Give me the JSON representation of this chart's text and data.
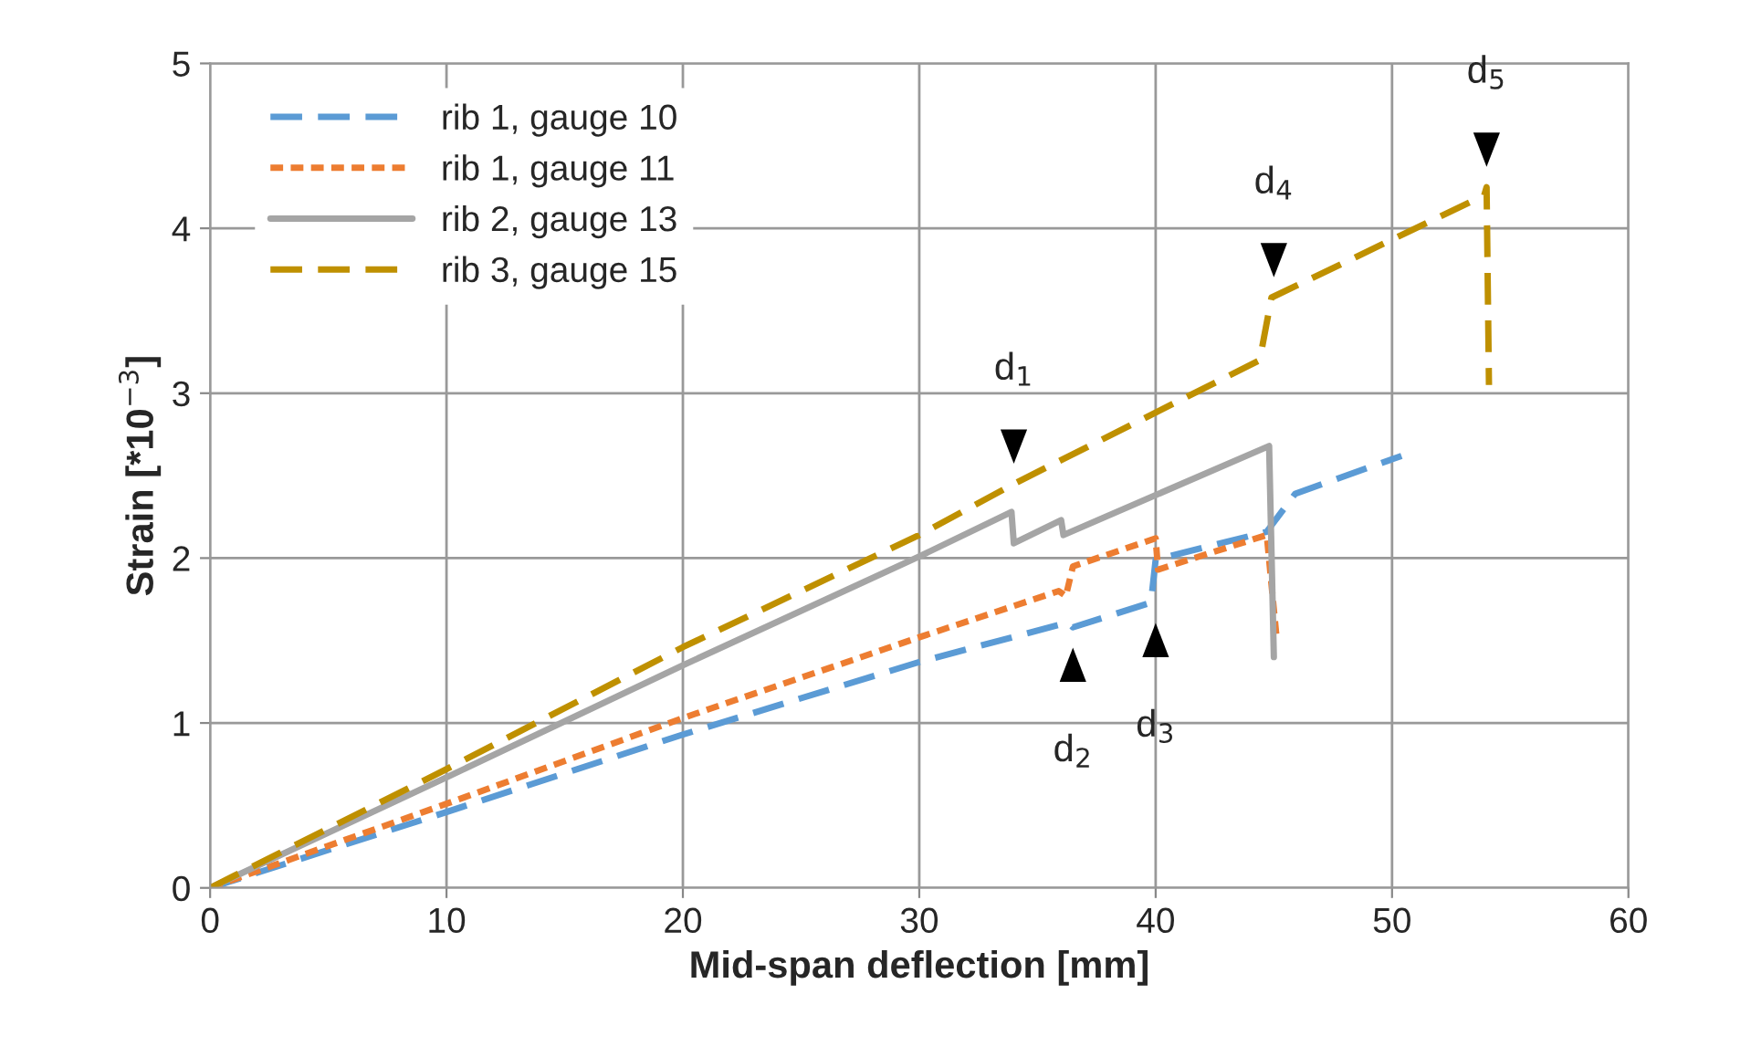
{
  "chart_data": {
    "type": "line",
    "xlabel": "Mid-span deflection [mm]",
    "ylabel": "Strain [*10$^{−3}$]",
    "xlim": [
      0,
      60
    ],
    "xticks": [
      0,
      10,
      20,
      30,
      40,
      50,
      60
    ],
    "ylim": [
      0,
      5
    ],
    "yticks": [
      0,
      1,
      2,
      3,
      4,
      5
    ],
    "grid": true,
    "legend": "top left",
    "marker": "none",
    "series": [
      {
        "name": "rib 1, gauge 10",
        "color": "#5b9bd5",
        "line_style": "dashed",
        "x": [
          0,
          10,
          20,
          30,
          36.3,
          36.5,
          39.8,
          40,
          44.7,
          45.9,
          50.4
        ],
        "values": [
          0,
          0.46,
          0.93,
          1.37,
          1.61,
          1.58,
          1.73,
          1.99,
          2.16,
          2.39,
          2.62
        ]
      },
      {
        "name": "rib 1, gauge 11",
        "color": "#ed7d31",
        "line_style": "dotted",
        "x": [
          0,
          10,
          20,
          30,
          35.9,
          36.2,
          36.5,
          40,
          40.1,
          44.7,
          45.1
        ],
        "values": [
          0,
          0.51,
          1.03,
          1.52,
          1.8,
          1.77,
          1.95,
          2.12,
          1.93,
          2.14,
          1.54
        ]
      },
      {
        "name": "rib 2, gauge 13",
        "color": "#a5a5a5",
        "line_style": "solid",
        "x": [
          0,
          10,
          20,
          30,
          33.9,
          34.0,
          36.0,
          36.1,
          44.8,
          45.0
        ],
        "values": [
          0,
          0.67,
          1.35,
          2.01,
          2.28,
          2.09,
          2.23,
          2.14,
          2.68,
          1.4
        ]
      },
      {
        "name": "rib 3, gauge 15",
        "color": "#bf9000",
        "line_style": "dashed",
        "x": [
          0,
          10,
          20,
          30,
          34,
          44.4,
          44.9,
          53.9,
          54.0,
          54.1
        ],
        "values": [
          0,
          0.72,
          1.46,
          2.14,
          2.45,
          3.2,
          3.58,
          4.2,
          4.25,
          3.05
        ]
      }
    ],
    "annotations": [
      {
        "text": "d$_{1}$",
        "x": 34,
        "y": 2.45
      },
      {
        "text": "d$_{2}$",
        "x": 36.5,
        "y": 1.58
      },
      {
        "text": "d$_{3}$",
        "x": 40,
        "y": 1.73
      },
      {
        "text": "d$_{4}$",
        "x": 45,
        "y": 3.58
      },
      {
        "text": "d$_{5}$",
        "x": 54,
        "y": 4.25
      }
    ]
  }
}
